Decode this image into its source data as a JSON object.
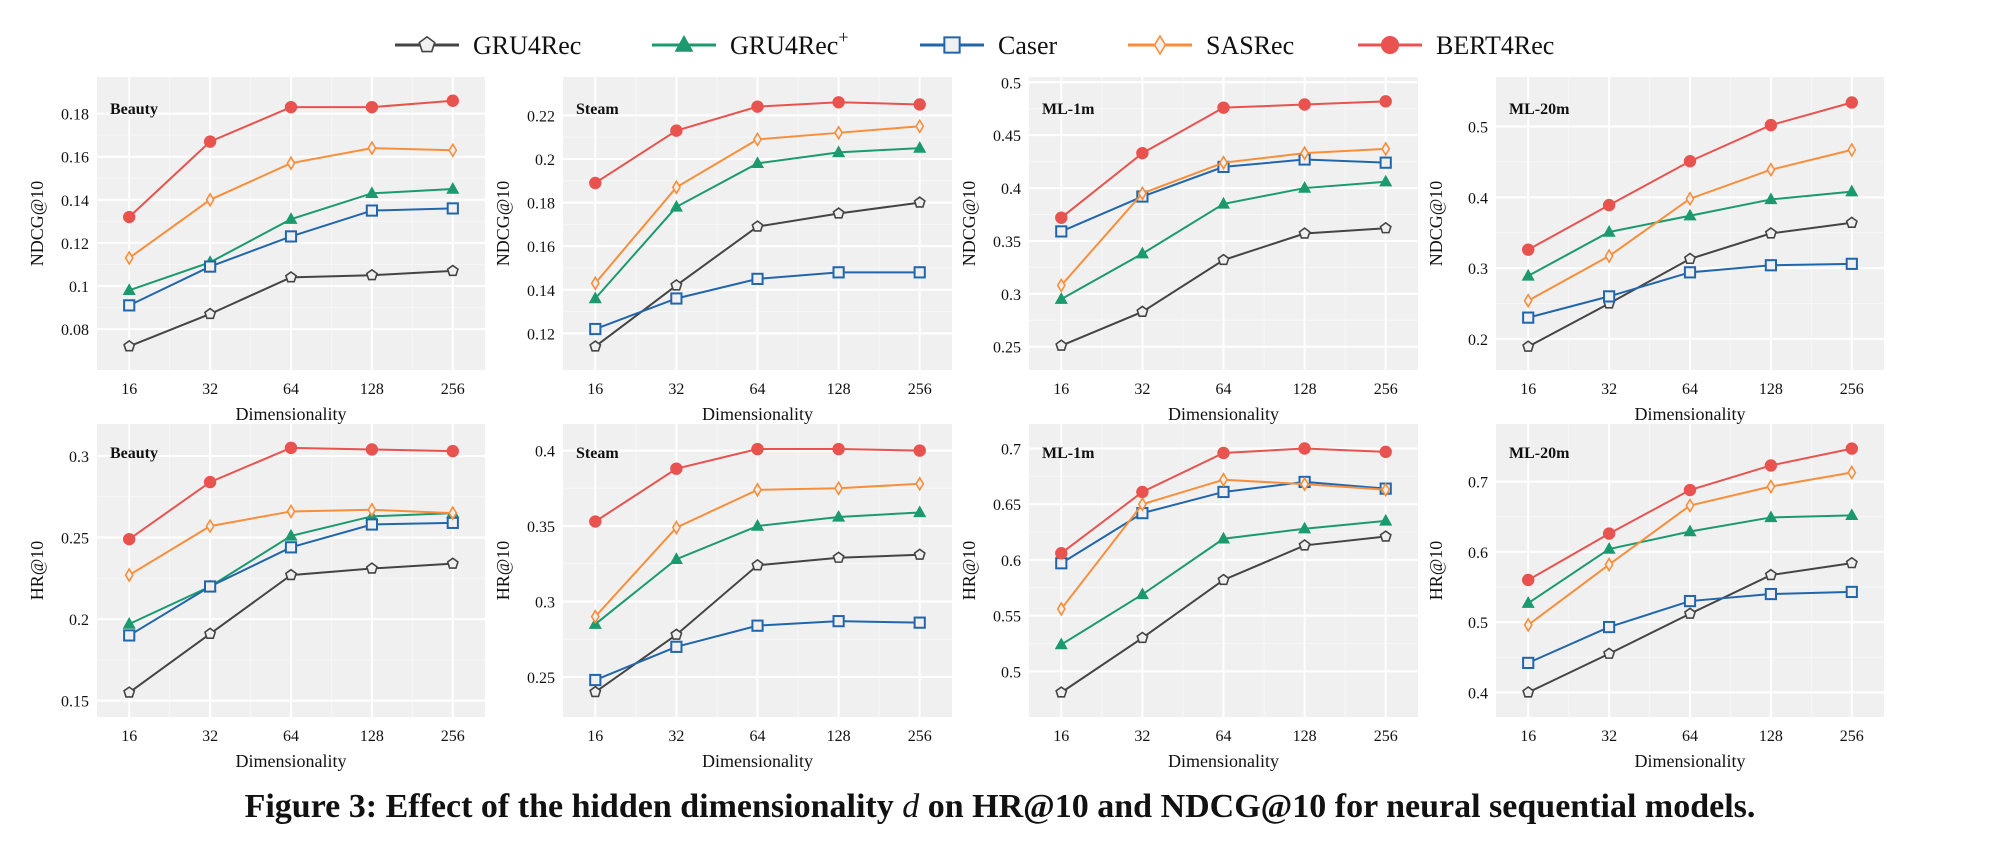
{
  "caption": {
    "prefix": "Figure 3: Effect of the hidden dimensionality ",
    "var": "d",
    "suffix": " on HR@10 and NDCG@10 for neural sequential models."
  },
  "legend": [
    {
      "name": "GRU4Rec",
      "sup": "",
      "color": "#444444",
      "marker": "pentagon-open"
    },
    {
      "name": "GRU4Rec",
      "sup": "+",
      "color": "#1b9a6e",
      "marker": "triangle-filled"
    },
    {
      "name": "Caser",
      "sup": "",
      "color": "#2166ac",
      "marker": "square-open"
    },
    {
      "name": "SASRec",
      "sup": "",
      "color": "#f98e3a",
      "marker": "diamond-open"
    },
    {
      "name": "BERT4Rec",
      "sup": "",
      "color": "#e8534f",
      "marker": "circle-filled"
    }
  ],
  "chart_data": [
    {
      "type": "line",
      "title": "Beauty",
      "xlabel": "Dimensionality",
      "ylabel": "NDCG@10",
      "categories": [
        "16",
        "32",
        "64",
        "128",
        "256"
      ],
      "ylim": [
        0.061,
        0.197
      ],
      "yticks": [
        0.08,
        0.1,
        0.12,
        0.14,
        0.16,
        0.18
      ],
      "ytick_labels": [
        "0.08",
        "0.1",
        "0.12",
        "0.14",
        "0.16",
        "0.18"
      ],
      "grid": true,
      "series": [
        {
          "name": "GRU4Rec",
          "values": [
            0.072,
            0.087,
            0.104,
            0.105,
            0.107
          ]
        },
        {
          "name": "GRU4Rec+",
          "values": [
            0.098,
            0.111,
            0.131,
            0.143,
            0.145
          ]
        },
        {
          "name": "Caser",
          "values": [
            0.091,
            0.109,
            0.123,
            0.135,
            0.136
          ]
        },
        {
          "name": "SASRec",
          "values": [
            0.113,
            0.14,
            0.157,
            0.164,
            0.163
          ]
        },
        {
          "name": "BERT4Rec",
          "values": [
            0.132,
            0.167,
            0.183,
            0.183,
            0.186
          ]
        }
      ]
    },
    {
      "type": "line",
      "title": "Steam",
      "xlabel": "Dimensionality",
      "ylabel": "NDCG@10",
      "categories": [
        "16",
        "32",
        "64",
        "128",
        "256"
      ],
      "ylim": [
        0.1032,
        0.2376
      ],
      "yticks": [
        0.12,
        0.14,
        0.16,
        0.18,
        0.2,
        0.22
      ],
      "ytick_labels": [
        "0.12",
        "0.14",
        "0.16",
        "0.18",
        "0.2",
        "0.22"
      ],
      "grid": true,
      "series": [
        {
          "name": "GRU4Rec",
          "values": [
            0.114,
            0.142,
            0.169,
            0.175,
            0.18
          ]
        },
        {
          "name": "GRU4Rec+",
          "values": [
            0.136,
            0.178,
            0.198,
            0.203,
            0.205
          ]
        },
        {
          "name": "Caser",
          "values": [
            0.122,
            0.136,
            0.145,
            0.148,
            0.148
          ]
        },
        {
          "name": "SASRec",
          "values": [
            0.143,
            0.187,
            0.209,
            0.212,
            0.215
          ]
        },
        {
          "name": "BERT4Rec",
          "values": [
            0.189,
            0.213,
            0.224,
            0.226,
            0.225
          ]
        }
      ]
    },
    {
      "type": "line",
      "title": "ML-1m",
      "xlabel": "Dimensionality",
      "ylabel": "NDCG@10",
      "categories": [
        "16",
        "32",
        "64",
        "128",
        "256"
      ],
      "ylim": [
        0.228,
        0.505
      ],
      "yticks": [
        0.25,
        0.3,
        0.35,
        0.4,
        0.45,
        0.5
      ],
      "ytick_labels": [
        "0.25",
        "0.3",
        "0.35",
        "0.4",
        "0.45",
        "0.5"
      ],
      "grid": true,
      "series": [
        {
          "name": "GRU4Rec",
          "values": [
            0.251,
            0.283,
            0.332,
            0.357,
            0.362
          ]
        },
        {
          "name": "GRU4Rec+",
          "values": [
            0.295,
            0.338,
            0.385,
            0.4,
            0.406
          ]
        },
        {
          "name": "Caser",
          "values": [
            0.359,
            0.392,
            0.42,
            0.427,
            0.424
          ]
        },
        {
          "name": "SASRec",
          "values": [
            0.308,
            0.395,
            0.424,
            0.433,
            0.437
          ]
        },
        {
          "name": "BERT4Rec",
          "values": [
            0.372,
            0.433,
            0.476,
            0.479,
            0.482
          ]
        }
      ]
    },
    {
      "type": "line",
      "title": "ML-20m",
      "xlabel": "Dimensionality",
      "ylabel": "NDCG@10",
      "categories": [
        "16",
        "32",
        "64",
        "128",
        "256"
      ],
      "ylim": [
        0.156,
        0.57
      ],
      "yticks": [
        0.2,
        0.3,
        0.4,
        0.5
      ],
      "ytick_labels": [
        "0.2",
        "0.3",
        "0.4",
        "0.5"
      ],
      "grid": true,
      "series": [
        {
          "name": "GRU4Rec",
          "values": [
            0.189,
            0.25,
            0.313,
            0.349,
            0.364
          ]
        },
        {
          "name": "GRU4Rec+",
          "values": [
            0.289,
            0.351,
            0.374,
            0.397,
            0.408
          ]
        },
        {
          "name": "Caser",
          "values": [
            0.23,
            0.26,
            0.294,
            0.304,
            0.306
          ]
        },
        {
          "name": "SASRec",
          "values": [
            0.254,
            0.317,
            0.398,
            0.439,
            0.467
          ]
        },
        {
          "name": "BERT4Rec",
          "values": [
            0.326,
            0.389,
            0.451,
            0.502,
            0.534
          ]
        }
      ]
    },
    {
      "type": "line",
      "title": "Beauty",
      "xlabel": "Dimensionality",
      "ylabel": "HR@10",
      "categories": [
        "16",
        "32",
        "64",
        "128",
        "256"
      ],
      "ylim": [
        0.14,
        0.3196
      ],
      "yticks": [
        0.15,
        0.2,
        0.25,
        0.3
      ],
      "ytick_labels": [
        "0.15",
        "0.2",
        "0.25",
        "0.3"
      ],
      "grid": true,
      "series": [
        {
          "name": "GRU4Rec",
          "values": [
            0.155,
            0.191,
            0.227,
            0.231,
            0.234
          ]
        },
        {
          "name": "GRU4Rec+",
          "values": [
            0.197,
            0.22,
            0.251,
            0.263,
            0.265
          ]
        },
        {
          "name": "Caser",
          "values": [
            0.19,
            0.22,
            0.244,
            0.258,
            0.259
          ]
        },
        {
          "name": "SASRec",
          "values": [
            0.227,
            0.257,
            0.266,
            0.267,
            0.265
          ]
        },
        {
          "name": "BERT4Rec",
          "values": [
            0.249,
            0.284,
            0.305,
            0.304,
            0.303
          ]
        }
      ]
    },
    {
      "type": "line",
      "title": "Steam",
      "xlabel": "Dimensionality",
      "ylabel": "HR@10",
      "categories": [
        "16",
        "32",
        "64",
        "128",
        "256"
      ],
      "ylim": [
        0.2235,
        0.4176
      ],
      "yticks": [
        0.25,
        0.3,
        0.35,
        0.4
      ],
      "ytick_labels": [
        "0.25",
        "0.3",
        "0.35",
        "0.4"
      ],
      "grid": true,
      "series": [
        {
          "name": "GRU4Rec",
          "values": [
            0.24,
            0.278,
            0.324,
            0.329,
            0.331
          ]
        },
        {
          "name": "GRU4Rec+",
          "values": [
            0.285,
            0.328,
            0.35,
            0.356,
            0.359
          ]
        },
        {
          "name": "Caser",
          "values": [
            0.248,
            0.27,
            0.284,
            0.287,
            0.286
          ]
        },
        {
          "name": "SASRec",
          "values": [
            0.29,
            0.349,
            0.374,
            0.375,
            0.378
          ]
        },
        {
          "name": "BERT4Rec",
          "values": [
            0.353,
            0.388,
            0.401,
            0.401,
            0.4
          ]
        }
      ]
    },
    {
      "type": "line",
      "title": "ML-1m",
      "xlabel": "Dimensionality",
      "ylabel": "HR@10",
      "categories": [
        "16",
        "32",
        "64",
        "128",
        "256"
      ],
      "ylim": [
        0.459,
        0.722
      ],
      "yticks": [
        0.5,
        0.55,
        0.6,
        0.65,
        0.7
      ],
      "ytick_labels": [
        "0.5",
        "0.55",
        "0.6",
        "0.65",
        "0.7"
      ],
      "grid": true,
      "series": [
        {
          "name": "GRU4Rec",
          "values": [
            0.481,
            0.53,
            0.582,
            0.613,
            0.621
          ]
        },
        {
          "name": "GRU4Rec+",
          "values": [
            0.524,
            0.569,
            0.619,
            0.628,
            0.635
          ]
        },
        {
          "name": "Caser",
          "values": [
            0.597,
            0.642,
            0.661,
            0.67,
            0.664
          ]
        },
        {
          "name": "SASRec",
          "values": [
            0.556,
            0.65,
            0.672,
            0.668,
            0.663
          ]
        },
        {
          "name": "BERT4Rec",
          "values": [
            0.606,
            0.661,
            0.696,
            0.7,
            0.697
          ]
        }
      ]
    },
    {
      "type": "line",
      "title": "ML-20m",
      "xlabel": "Dimensionality",
      "ylabel": "HR@10",
      "categories": [
        "16",
        "32",
        "64",
        "128",
        "256"
      ],
      "ylim": [
        0.365,
        0.782
      ],
      "yticks": [
        0.4,
        0.5,
        0.6,
        0.7
      ],
      "ytick_labels": [
        "0.4",
        "0.5",
        "0.6",
        "0.7"
      ],
      "grid": true,
      "series": [
        {
          "name": "GRU4Rec",
          "values": [
            0.4,
            0.455,
            0.512,
            0.567,
            0.584
          ]
        },
        {
          "name": "GRU4Rec+",
          "values": [
            0.527,
            0.604,
            0.629,
            0.649,
            0.652
          ]
        },
        {
          "name": "Caser",
          "values": [
            0.442,
            0.493,
            0.53,
            0.54,
            0.543
          ]
        },
        {
          "name": "SASRec",
          "values": [
            0.496,
            0.582,
            0.666,
            0.693,
            0.713
          ]
        },
        {
          "name": "BERT4Rec",
          "values": [
            0.56,
            0.626,
            0.688,
            0.723,
            0.747
          ]
        }
      ]
    }
  ]
}
